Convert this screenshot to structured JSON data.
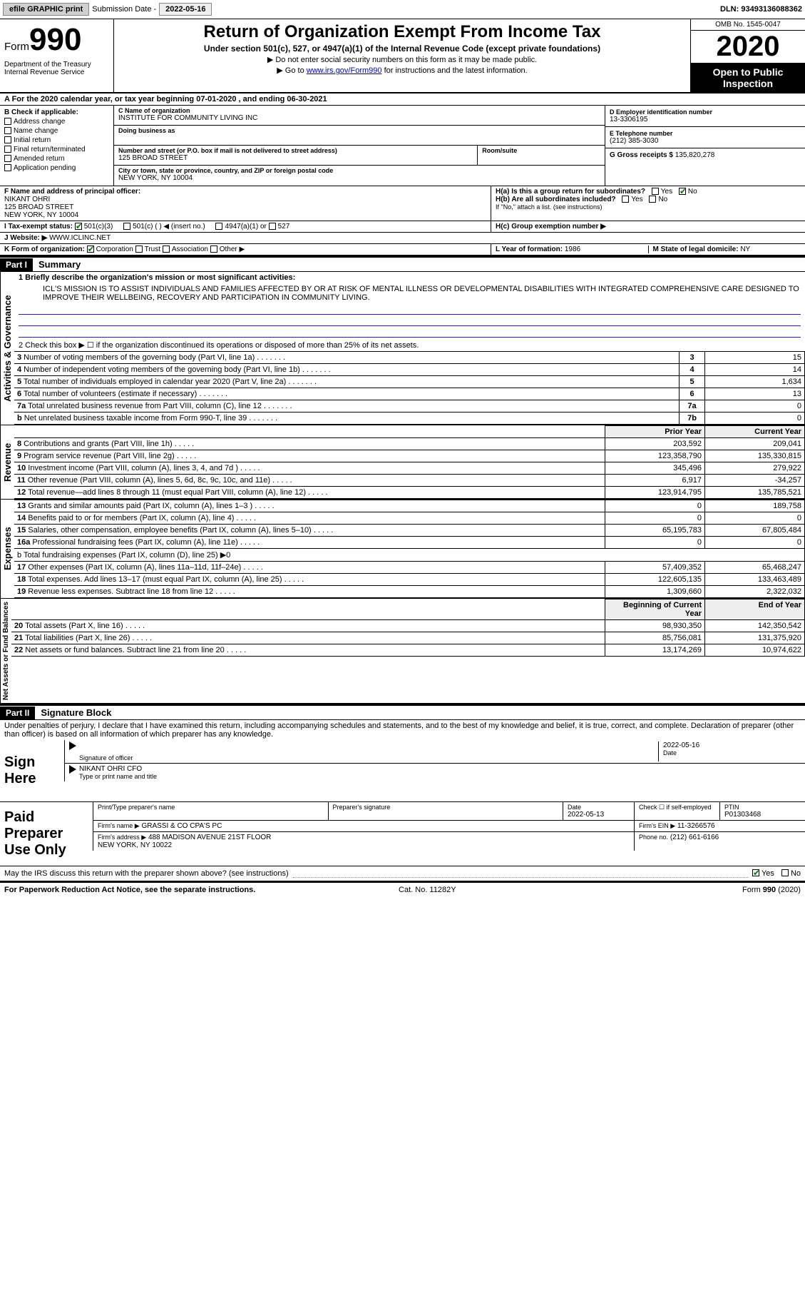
{
  "topbar": {
    "efile": "efile GRAPHIC print",
    "sub_label": "Submission Date -",
    "sub_date": "2022-05-16",
    "dln_label": "DLN:",
    "dln": "93493136088362"
  },
  "header": {
    "form_word": "Form",
    "form_num": "990",
    "dept": "Department of the Treasury\nInternal Revenue Service",
    "title": "Return of Organization Exempt From Income Tax",
    "subtitle": "Under section 501(c), 527, or 4947(a)(1) of the Internal Revenue Code (except private foundations)",
    "note1": "▶ Do not enter social security numbers on this form as it may be made public.",
    "note2_pre": "▶ Go to ",
    "note2_link": "www.irs.gov/Form990",
    "note2_post": " for instructions and the latest information.",
    "omb": "OMB No. 1545-0047",
    "year": "2020",
    "open": "Open to Public Inspection"
  },
  "period": {
    "text_a": "A For the 2020 calendar year, or tax year beginning ",
    "begin": "07-01-2020",
    "text_b": " , and ending ",
    "end": "06-30-2021"
  },
  "boxB": {
    "hdr": "B Check if applicable:",
    "items": [
      "Address change",
      "Name change",
      "Initial return",
      "Final return/terminated",
      "Amended return",
      "Application pending"
    ]
  },
  "boxC": {
    "name_lbl": "C Name of organization",
    "name": "INSTITUTE FOR COMMUNITY LIVING INC",
    "dba_lbl": "Doing business as",
    "dba": "",
    "addr_lbl": "Number and street (or P.O. box if mail is not delivered to street address)",
    "room_lbl": "Room/suite",
    "addr": "125 BROAD STREET",
    "city_lbl": "City or town, state or province, country, and ZIP or foreign postal code",
    "city": "NEW YORK, NY  10004"
  },
  "boxD": {
    "ein_lbl": "D Employer identification number",
    "ein": "13-3306195",
    "tel_lbl": "E Telephone number",
    "tel": "(212) 385-3030",
    "gross_lbl": "G Gross receipts $",
    "gross": "135,820,278"
  },
  "boxF": {
    "lbl": "F Name and address of principal officer:",
    "name": "NIKANT OHRI",
    "addr1": "125 BROAD STREET",
    "addr2": "NEW YORK, NY  10004"
  },
  "boxH": {
    "ha": "H(a)  Is this a group return for subordinates?",
    "hb": "H(b)  Are all subordinates included?",
    "hb_note": "If \"No,\" attach a list. (see instructions)",
    "hc": "H(c)  Group exemption number ▶",
    "yes": "Yes",
    "no": "No"
  },
  "boxI": {
    "lbl": "I  Tax-exempt status:",
    "o1": "501(c)(3)",
    "o2": "501(c) (  ) ◀ (insert no.)",
    "o3": "4947(a)(1) or",
    "o4": "527"
  },
  "boxJ": {
    "lbl": "J  Website: ▶",
    "val": "WWW.ICLINC.NET"
  },
  "boxK": {
    "lbl": "K Form of organization:",
    "opts": [
      "Corporation",
      "Trust",
      "Association",
      "Other ▶"
    ]
  },
  "boxL": {
    "lbl": "L Year of formation:",
    "val": "1986"
  },
  "boxM": {
    "lbl": "M State of legal domicile:",
    "val": "NY"
  },
  "part1": {
    "num": "Part I",
    "title": "Summary"
  },
  "mission_lbl": "1  Briefly describe the organization's mission or most significant activities:",
  "mission": "ICL'S MISSION IS TO ASSIST INDIVIDUALS AND FAMILIES AFFECTED BY OR AT RISK OF MENTAL ILLNESS OR DEVELOPMENTAL DISABILITIES WITH INTEGRATED COMPREHENSIVE CARE DESIGNED TO IMPROVE THEIR WELLBEING, RECOVERY AND PARTICIPATION IN COMMUNITY LIVING.",
  "act_gov": {
    "label": "Activities & Governance",
    "l2": "2  Check this box ▶ ☐ if the organization discontinued its operations or disposed of more than 25% of its net assets.",
    "rows": [
      {
        "n": "3",
        "d": "Number of voting members of the governing body (Part VI, line 1a)",
        "box": "3",
        "v": "15"
      },
      {
        "n": "4",
        "d": "Number of independent voting members of the governing body (Part VI, line 1b)",
        "box": "4",
        "v": "14"
      },
      {
        "n": "5",
        "d": "Total number of individuals employed in calendar year 2020 (Part V, line 2a)",
        "box": "5",
        "v": "1,634"
      },
      {
        "n": "6",
        "d": "Total number of volunteers (estimate if necessary)",
        "box": "6",
        "v": "13"
      },
      {
        "n": "7a",
        "d": "Total unrelated business revenue from Part VIII, column (C), line 12",
        "box": "7a",
        "v": "0"
      },
      {
        "n": "b",
        "d": "Net unrelated business taxable income from Form 990-T, line 39",
        "box": "7b",
        "v": "0"
      }
    ]
  },
  "revenue": {
    "label": "Revenue",
    "prior_hdr": "Prior Year",
    "curr_hdr": "Current Year",
    "rows": [
      {
        "n": "8",
        "d": "Contributions and grants (Part VIII, line 1h)",
        "p": "203,592",
        "c": "209,041"
      },
      {
        "n": "9",
        "d": "Program service revenue (Part VIII, line 2g)",
        "p": "123,358,790",
        "c": "135,330,815"
      },
      {
        "n": "10",
        "d": "Investment income (Part VIII, column (A), lines 3, 4, and 7d )",
        "p": "345,496",
        "c": "279,922"
      },
      {
        "n": "11",
        "d": "Other revenue (Part VIII, column (A), lines 5, 6d, 8c, 9c, 10c, and 11e)",
        "p": "6,917",
        "c": "-34,257"
      },
      {
        "n": "12",
        "d": "Total revenue—add lines 8 through 11 (must equal Part VIII, column (A), line 12)",
        "p": "123,914,795",
        "c": "135,785,521"
      }
    ]
  },
  "expenses": {
    "label": "Expenses",
    "rows": [
      {
        "n": "13",
        "d": "Grants and similar amounts paid (Part IX, column (A), lines 1–3 )",
        "p": "0",
        "c": "189,758"
      },
      {
        "n": "14",
        "d": "Benefits paid to or for members (Part IX, column (A), line 4)",
        "p": "0",
        "c": "0"
      },
      {
        "n": "15",
        "d": "Salaries, other compensation, employee benefits (Part IX, column (A), lines 5–10)",
        "p": "65,195,783",
        "c": "67,805,484"
      },
      {
        "n": "16a",
        "d": "Professional fundraising fees (Part IX, column (A), line 11e)",
        "p": "0",
        "c": "0"
      }
    ],
    "b_line": "b  Total fundraising expenses (Part IX, column (D), line 25) ▶0",
    "rows2": [
      {
        "n": "17",
        "d": "Other expenses (Part IX, column (A), lines 11a–11d, 11f–24e)",
        "p": "57,409,352",
        "c": "65,468,247"
      },
      {
        "n": "18",
        "d": "Total expenses. Add lines 13–17 (must equal Part IX, column (A), line 25)",
        "p": "122,605,135",
        "c": "133,463,489"
      },
      {
        "n": "19",
        "d": "Revenue less expenses. Subtract line 18 from line 12",
        "p": "1,309,660",
        "c": "2,322,032"
      }
    ]
  },
  "netassets": {
    "label": "Net Assets or Fund Balances",
    "beg_hdr": "Beginning of Current Year",
    "end_hdr": "End of Year",
    "rows": [
      {
        "n": "20",
        "d": "Total assets (Part X, line 16)",
        "p": "98,930,350",
        "c": "142,350,542"
      },
      {
        "n": "21",
        "d": "Total liabilities (Part X, line 26)",
        "p": "85,756,081",
        "c": "131,375,920"
      },
      {
        "n": "22",
        "d": "Net assets or fund balances. Subtract line 21 from line 20",
        "p": "13,174,269",
        "c": "10,974,622"
      }
    ]
  },
  "part2": {
    "num": "Part II",
    "title": "Signature Block"
  },
  "sig_decl": "Under penalties of perjury, I declare that I have examined this return, including accompanying schedules and statements, and to the best of my knowledge and belief, it is true, correct, and complete. Declaration of preparer (other than officer) is based on all information of which preparer has any knowledge.",
  "sign": {
    "here": "Sign Here",
    "sig_lbl": "Signature of officer",
    "date": "2022-05-16",
    "date_lbl": "Date",
    "name": "NIKANT OHRI  CFO",
    "name_lbl": "Type or print name and title"
  },
  "prep": {
    "label": "Paid Preparer Use Only",
    "print_lbl": "Print/Type preparer's name",
    "sig_lbl": "Preparer's signature",
    "date_lbl": "Date",
    "date": "2022-05-13",
    "self_lbl": "Check ☐ if self-employed",
    "ptin_lbl": "PTIN",
    "ptin": "P01303468",
    "firm_name_lbl": "Firm's name    ▶",
    "firm_name": "GRASSI & CO CPA'S PC",
    "firm_ein_lbl": "Firm's EIN ▶",
    "firm_ein": "11-3266576",
    "firm_addr_lbl": "Firm's address ▶",
    "firm_addr": "488 MADISON AVENUE 21ST FLOOR\nNEW YORK, NY  10022",
    "phone_lbl": "Phone no.",
    "phone": "(212) 661-6166"
  },
  "discuss": {
    "q": "May the IRS discuss this return with the preparer shown above? (see instructions)",
    "yes": "Yes",
    "no": "No"
  },
  "footer": {
    "left": "For Paperwork Reduction Act Notice, see the separate instructions.",
    "mid": "Cat. No. 11282Y",
    "right_a": "Form ",
    "right_b": "990",
    "right_c": " (2020)"
  }
}
